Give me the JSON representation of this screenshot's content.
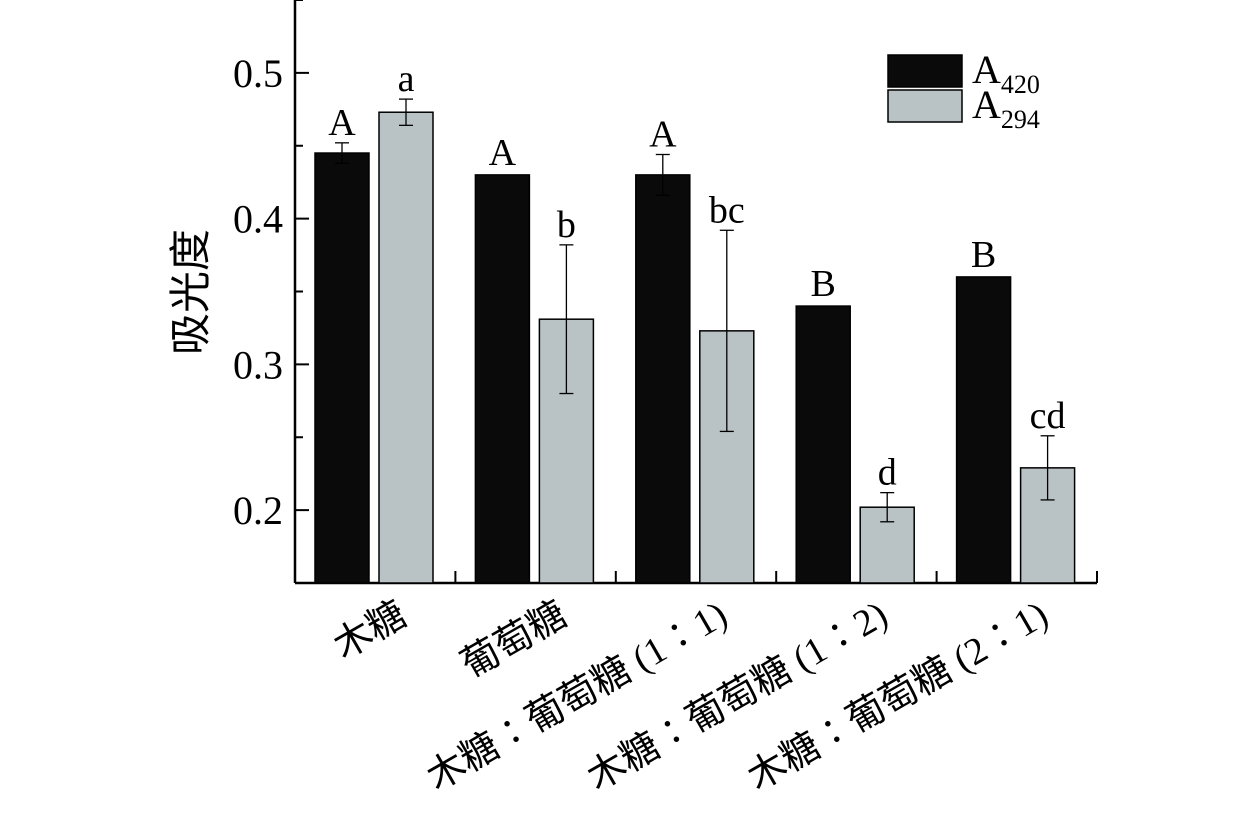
{
  "chart_data": {
    "type": "bar",
    "title": "",
    "xlabel": "",
    "ylabel": "吸光度",
    "ylim": [
      0.15,
      0.55
    ],
    "yticks": [
      0.2,
      0.3,
      0.4,
      0.5
    ],
    "tick_labels": [
      "0.2",
      "0.3",
      "0.4",
      "0.5"
    ],
    "grid": false,
    "legend_position": "top-right",
    "categories": [
      "木糖",
      "葡萄糖",
      "木糖∶葡萄糖 (1∶1)",
      "木糖∶葡萄糖 (1∶2)",
      "木糖∶葡萄糖 (2∶1)"
    ],
    "series": [
      {
        "name": "A420",
        "name_main": "A",
        "name_sub": "420",
        "color": "#0a0a0a",
        "values": [
          0.445,
          0.43,
          0.43,
          0.34,
          0.36
        ],
        "errors": [
          0.007,
          0.0,
          0.014,
          0.0,
          0.0
        ],
        "labels": [
          "A",
          "A",
          "A",
          "B",
          "B"
        ]
      },
      {
        "name": "A294",
        "name_main": "A",
        "name_sub": "294",
        "color": "#b9c3c5",
        "values": [
          0.473,
          0.331,
          0.323,
          0.202,
          0.229
        ],
        "errors": [
          0.009,
          0.051,
          0.069,
          0.01,
          0.022
        ],
        "labels": [
          "a",
          "b",
          "bc",
          "d",
          "cd"
        ]
      }
    ]
  }
}
